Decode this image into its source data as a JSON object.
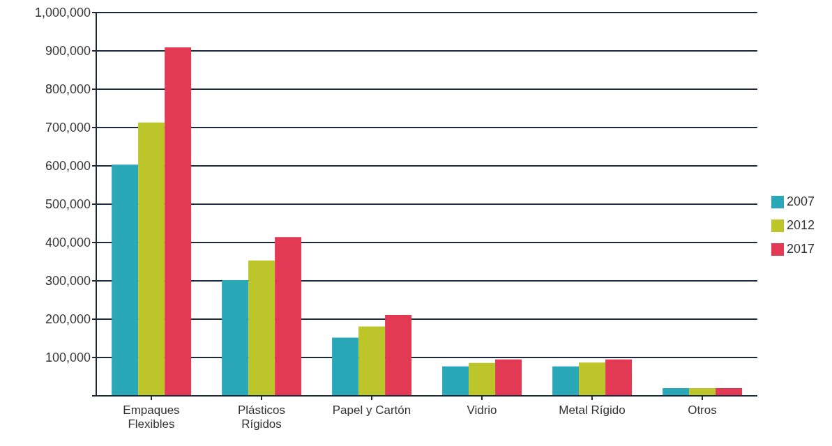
{
  "chart_data": {
    "type": "bar",
    "categories": [
      "Empaques Flexibles",
      "Plásticos Rígidos",
      "Papel y Cartón",
      "Vidrio",
      "Metal Rígido",
      "Otros"
    ],
    "series": [
      {
        "name": "2007",
        "color": "#2aa8b8",
        "values": [
          603000,
          302000,
          152000,
          77000,
          77000,
          20000
        ]
      },
      {
        "name": "2012",
        "color": "#bcc52a",
        "values": [
          713000,
          353000,
          181000,
          86000,
          87000,
          20000
        ]
      },
      {
        "name": "2017",
        "color": "#e23a55",
        "values": [
          909000,
          414000,
          211000,
          95000,
          95000,
          20000
        ]
      }
    ],
    "ylim": [
      0,
      1000000
    ],
    "yticks": [
      {
        "value": 0,
        "label": null
      },
      {
        "value": 100000,
        "label": "100,000"
      },
      {
        "value": 200000,
        "label": "200,000"
      },
      {
        "value": 300000,
        "label": "300,000"
      },
      {
        "value": 400000,
        "label": "400,000"
      },
      {
        "value": 500000,
        "label": "500,000"
      },
      {
        "value": 600000,
        "label": "600,000"
      },
      {
        "value": 700000,
        "label": "700,000"
      },
      {
        "value": 800000,
        "label": "800,000"
      },
      {
        "value": 900000,
        "label": "900,000"
      },
      {
        "value": 1000000,
        "label": "1,000,000"
      }
    ],
    "grid": "y",
    "legend": "right"
  }
}
